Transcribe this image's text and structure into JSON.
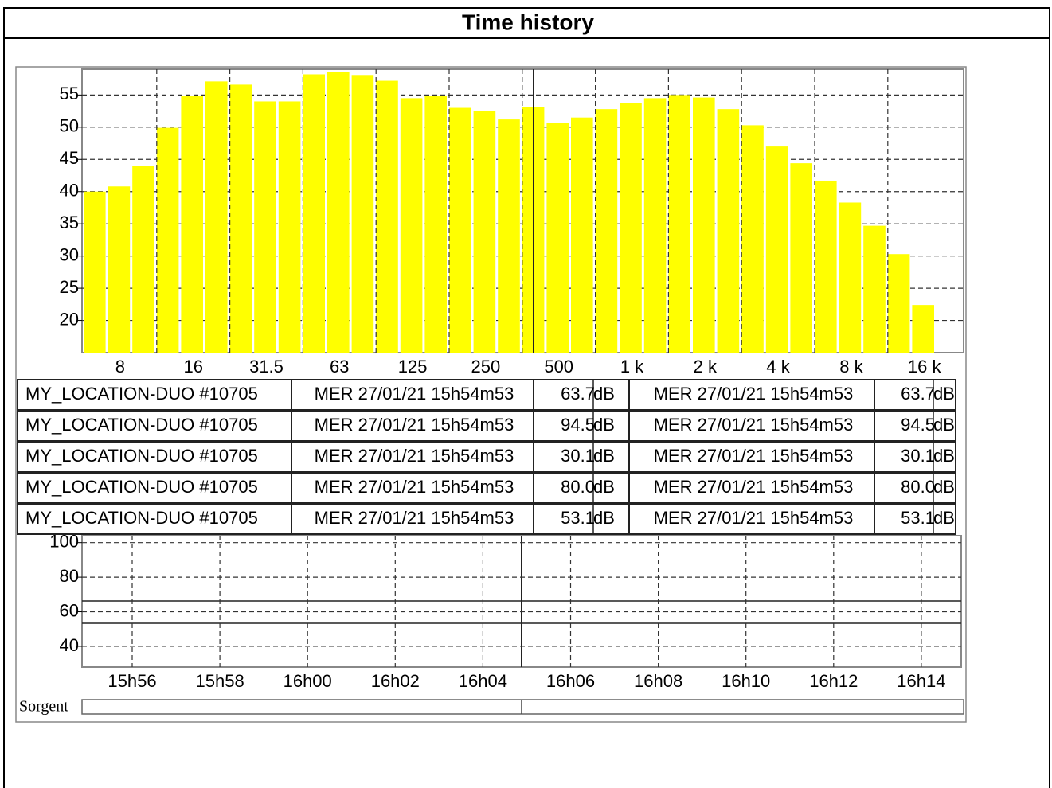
{
  "title": "Time history",
  "chart_data": [
    {
      "type": "bar",
      "color": "#ffff00",
      "categories": [
        null,
        "8",
        null,
        null,
        "16",
        null,
        null,
        "31.5",
        null,
        null,
        "63",
        null,
        null,
        "125",
        null,
        null,
        "250",
        null,
        null,
        "500",
        null,
        null,
        "1 k",
        null,
        null,
        "2 k",
        null,
        null,
        "4 k",
        null,
        null,
        "8 k",
        null,
        null,
        "16 k"
      ],
      "values": [
        40.0,
        40.8,
        44.0,
        49.9,
        54.8,
        57.1,
        56.6,
        54.0,
        54.0,
        58.2,
        58.6,
        58.1,
        57.2,
        54.5,
        54.8,
        53.0,
        52.5,
        51.2,
        53.1,
        50.7,
        51.5,
        52.8,
        53.8,
        54.5,
        55.0,
        54.6,
        52.8,
        50.3,
        47.0,
        44.4,
        41.7,
        38.3,
        34.7,
        30.3,
        22.4
      ],
      "ylim": [
        15,
        59
      ],
      "yticks": [
        20,
        25,
        30,
        35,
        40,
        45,
        50,
        55
      ],
      "grid": true
    },
    {
      "type": "line",
      "categories": [
        "15h56",
        "15h58",
        "16h00",
        "16h02",
        "16h04",
        "16h06",
        "16h08",
        "16h10",
        "16h12",
        "16h14"
      ],
      "ylim": [
        28,
        104
      ],
      "yticks": [
        40,
        60,
        80,
        100
      ],
      "grid": true
    }
  ],
  "table": {
    "rows": [
      [
        "MY_LOCATION-DUO #10705",
        "MER 27/01/21 15h54m53",
        "63.7",
        "dB",
        "MER 27/01/21 15h54m53",
        "63.7",
        "dB"
      ],
      [
        "MY_LOCATION-DUO #10705",
        "MER 27/01/21 15h54m53",
        "94.5",
        "dB",
        "MER 27/01/21 15h54m53",
        "94.5",
        "dB"
      ],
      [
        "MY_LOCATION-DUO #10705",
        "MER 27/01/21 15h54m53",
        "30.1",
        "dB",
        "MER 27/01/21 15h54m53",
        "30.1",
        "dB"
      ],
      [
        "MY_LOCATION-DUO #10705",
        "MER 27/01/21 15h54m53",
        "80.0",
        "dB",
        "MER 27/01/21 15h54m53",
        "80.0",
        "dB"
      ],
      [
        "MY_LOCATION-DUO #10705",
        "MER 27/01/21 15h54m53",
        "53.1",
        "dB",
        "MER 27/01/21 15h54m53",
        "53.1",
        "dB"
      ]
    ]
  },
  "source_label": "Sorgent"
}
